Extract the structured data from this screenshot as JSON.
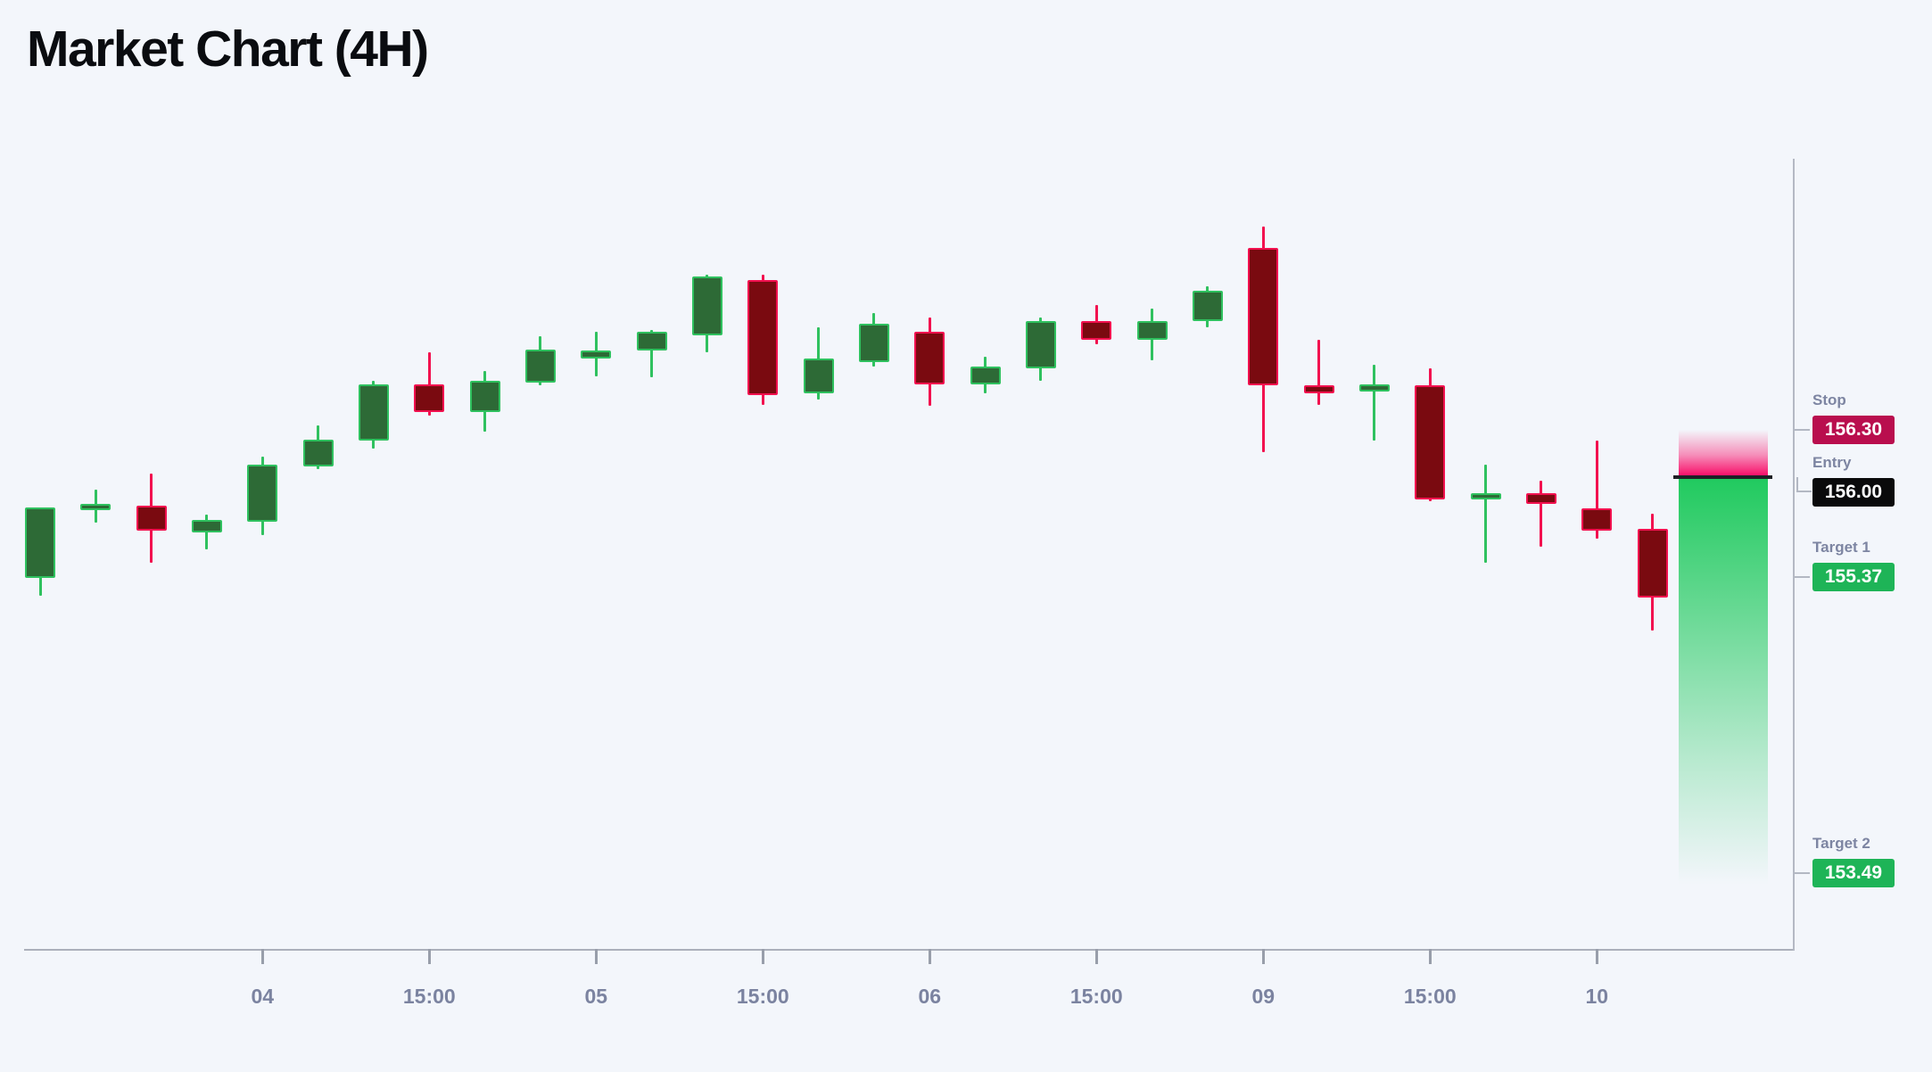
{
  "chart_data": {
    "type": "candlestick",
    "title": "Market Chart (4H)",
    "timeframe": "4H",
    "x_axis": {
      "tick_labels": [
        "04",
        "15:00",
        "05",
        "15:00",
        "06",
        "15:00",
        "09",
        "15:00",
        "10"
      ],
      "tick_candle_indices": [
        4,
        7,
        10,
        13,
        16,
        19,
        22,
        25,
        28
      ]
    },
    "ylim": [
      153.3,
      157.7
    ],
    "grid": false,
    "candles": [
      {
        "o": 155.36,
        "h": 155.81,
        "l": 155.25,
        "c": 155.81
      },
      {
        "o": 155.79,
        "h": 155.92,
        "l": 155.71,
        "c": 155.83
      },
      {
        "o": 155.82,
        "h": 156.02,
        "l": 155.46,
        "c": 155.66
      },
      {
        "o": 155.65,
        "h": 155.76,
        "l": 155.54,
        "c": 155.73
      },
      {
        "o": 155.72,
        "h": 156.13,
        "l": 155.63,
        "c": 156.08
      },
      {
        "o": 156.07,
        "h": 156.33,
        "l": 156.05,
        "c": 156.24
      },
      {
        "o": 156.23,
        "h": 156.61,
        "l": 156.18,
        "c": 156.59
      },
      {
        "o": 156.59,
        "h": 156.79,
        "l": 156.39,
        "c": 156.41
      },
      {
        "o": 156.41,
        "h": 156.67,
        "l": 156.29,
        "c": 156.61
      },
      {
        "o": 156.6,
        "h": 156.89,
        "l": 156.58,
        "c": 156.81
      },
      {
        "o": 156.75,
        "h": 156.92,
        "l": 156.64,
        "c": 156.8
      },
      {
        "o": 156.8,
        "h": 156.93,
        "l": 156.63,
        "c": 156.92
      },
      {
        "o": 156.9,
        "h": 157.28,
        "l": 156.79,
        "c": 157.27
      },
      {
        "o": 157.25,
        "h": 157.28,
        "l": 156.46,
        "c": 156.52
      },
      {
        "o": 156.53,
        "h": 156.95,
        "l": 156.49,
        "c": 156.75
      },
      {
        "o": 156.73,
        "h": 157.04,
        "l": 156.7,
        "c": 156.97
      },
      {
        "o": 156.92,
        "h": 157.01,
        "l": 156.45,
        "c": 156.59
      },
      {
        "o": 156.59,
        "h": 156.76,
        "l": 156.53,
        "c": 156.7
      },
      {
        "o": 156.69,
        "h": 157.01,
        "l": 156.61,
        "c": 156.99
      },
      {
        "o": 156.99,
        "h": 157.09,
        "l": 156.84,
        "c": 156.87
      },
      {
        "o": 156.87,
        "h": 157.07,
        "l": 156.74,
        "c": 156.99
      },
      {
        "o": 156.99,
        "h": 157.21,
        "l": 156.95,
        "c": 157.18
      },
      {
        "o": 157.45,
        "h": 157.59,
        "l": 156.16,
        "c": 156.58
      },
      {
        "o": 156.58,
        "h": 156.87,
        "l": 156.46,
        "c": 156.53
      },
      {
        "o": 156.54,
        "h": 156.71,
        "l": 156.23,
        "c": 156.59
      },
      {
        "o": 156.58,
        "h": 156.69,
        "l": 155.85,
        "c": 155.86
      },
      {
        "o": 155.86,
        "h": 156.08,
        "l": 155.46,
        "c": 155.9
      },
      {
        "o": 155.9,
        "h": 155.98,
        "l": 155.56,
        "c": 155.83
      },
      {
        "o": 155.8,
        "h": 156.23,
        "l": 155.61,
        "c": 155.66
      },
      {
        "o": 155.67,
        "h": 155.77,
        "l": 155.03,
        "c": 155.24
      }
    ],
    "colors": {
      "background": "#f3f6fb",
      "up_border": "#2fc15f",
      "up_fill": "#2d6a36",
      "down_border": "#f2104f",
      "down_fill": "#7a0a10",
      "stop_zone": "#f8116a",
      "profit_zone": "#21ca5f",
      "entry_line": "#1d2025"
    },
    "trade_levels": [
      {
        "id": "stop",
        "label": "Stop",
        "value": "156.30",
        "price": 156.3,
        "badge_color": "#b90e4e"
      },
      {
        "id": "entry",
        "label": "Entry",
        "value": "156.00",
        "price": 156.0,
        "badge_color": "#0a0a0b"
      },
      {
        "id": "target1",
        "label": "Target 1",
        "value": "155.37",
        "price": 155.37,
        "badge_color": "#1eb457"
      },
      {
        "id": "target2",
        "label": "Target 2",
        "value": "153.49",
        "price": 153.49,
        "badge_color": "#1eb457"
      }
    ]
  }
}
